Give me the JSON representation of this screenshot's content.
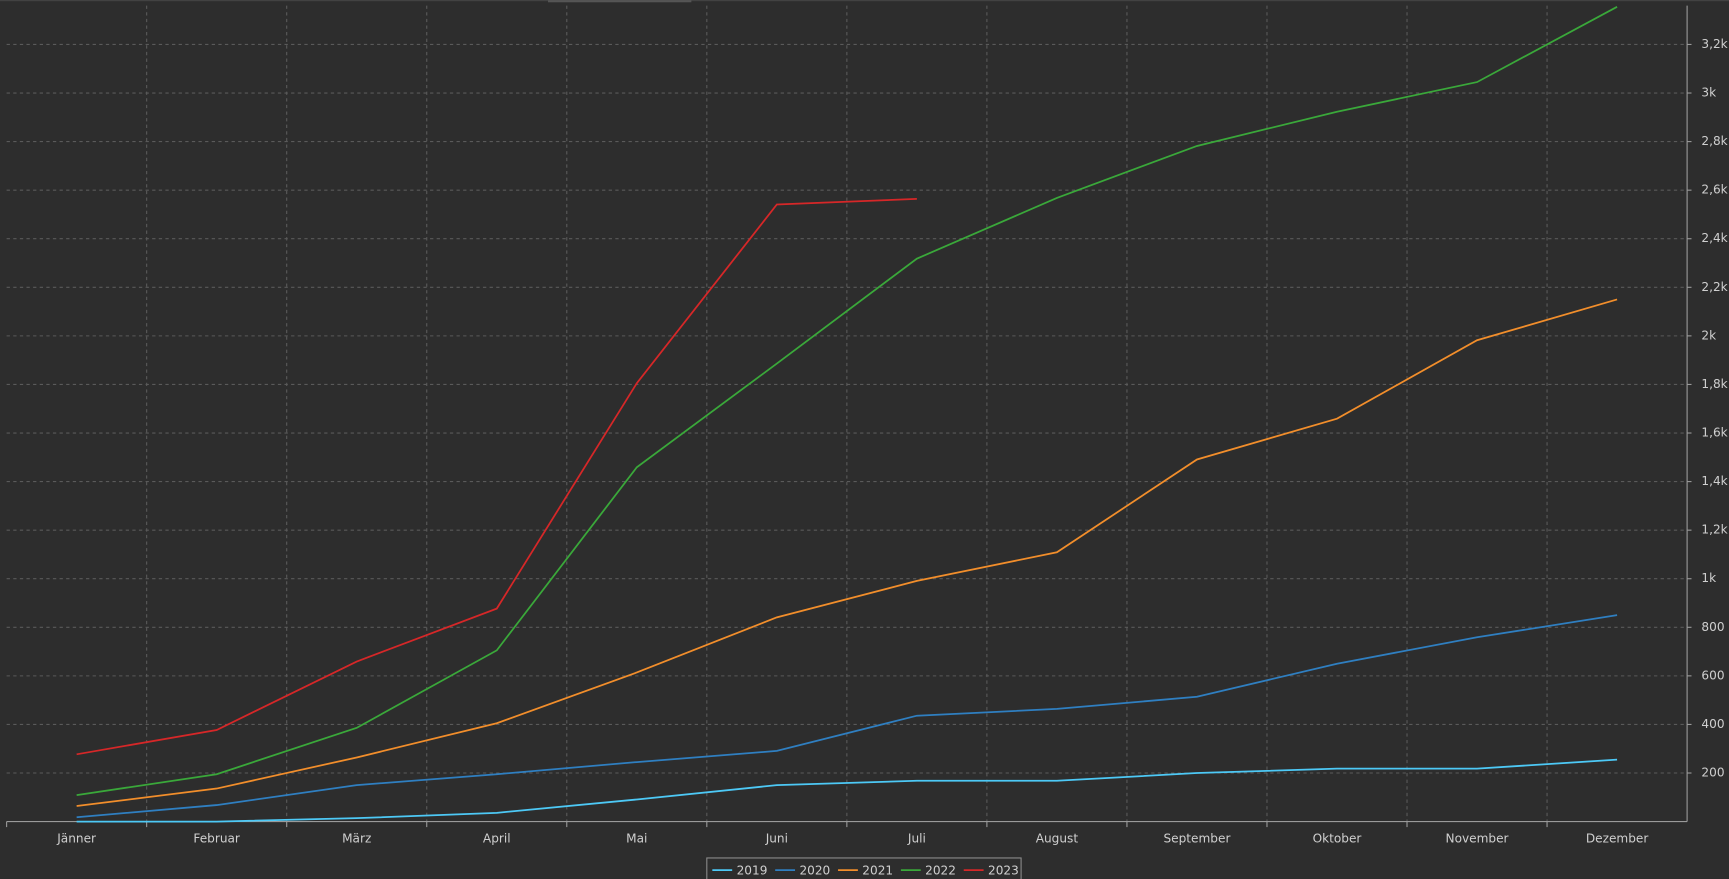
{
  "chart_data": {
    "type": "line",
    "categories": [
      "Jänner",
      "Februar",
      "März",
      "April",
      "Mai",
      "Juni",
      "Juli",
      "August",
      "September",
      "Oktober",
      "November",
      "Dezember"
    ],
    "series": [
      {
        "name": "2019",
        "color": "#4dc9f6",
        "values": [
          0,
          0,
          14,
          36,
          91,
          150,
          168,
          168,
          200,
          218,
          218,
          255
        ]
      },
      {
        "name": "2020",
        "color": "#2f7fc1",
        "values": [
          18,
          68,
          150,
          195,
          245,
          291,
          436,
          464,
          514,
          650,
          759,
          850
        ]
      },
      {
        "name": "2021",
        "color": "#f28e2b",
        "values": [
          64,
          136,
          264,
          405,
          614,
          841,
          991,
          1109,
          1491,
          1659,
          1982,
          2150
        ]
      },
      {
        "name": "2022",
        "color": "#3aa83a",
        "values": [
          109,
          195,
          386,
          705,
          1459,
          1886,
          2318,
          2568,
          2782,
          2923,
          3045,
          3355
        ]
      },
      {
        "name": "2023",
        "color": "#d62728",
        "values": [
          277,
          377,
          659,
          877,
          1805,
          2541,
          2564,
          null,
          null,
          null,
          null,
          null
        ]
      }
    ],
    "ylim": [
      0,
      3360
    ],
    "yticks": [
      200,
      400,
      600,
      800,
      {
        "value": 1000,
        "label": "1k"
      },
      {
        "value": 1200,
        "label": "1,2k"
      },
      {
        "value": 1400,
        "label": "1,4k"
      },
      {
        "value": 1600,
        "label": "1,6k"
      },
      {
        "value": 1800,
        "label": "1,8k"
      },
      {
        "value": 2000,
        "label": "2k"
      },
      {
        "value": 2200,
        "label": "2,2k"
      },
      {
        "value": 2400,
        "label": "2,4k"
      },
      {
        "value": 2600,
        "label": "2,6k"
      },
      {
        "value": 2800,
        "label": "2,8k"
      },
      {
        "value": 3000,
        "label": "3k"
      },
      {
        "value": 3200,
        "label": "3,2k"
      }
    ],
    "grid": true,
    "legend": "bottom"
  }
}
